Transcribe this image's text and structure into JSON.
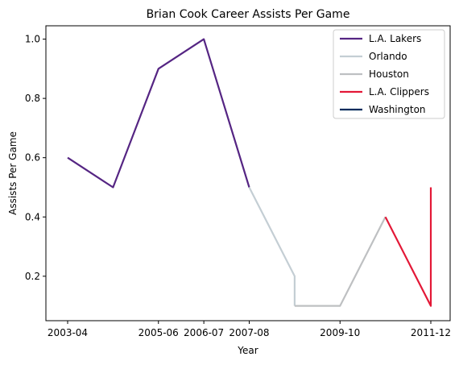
{
  "chart_data": {
    "type": "line",
    "title": "Brian Cook Career Assists Per Game",
    "xlabel": "Year",
    "ylabel": "Assists Per Game",
    "x_tick_labels": [
      "2003-04",
      "2005-06",
      "2006-07",
      "2007-08",
      "2009-10",
      "2011-12"
    ],
    "y_tick_labels": [
      "0.2",
      "0.4",
      "0.6",
      "0.8",
      "1.0"
    ],
    "y_ticks": [
      0.2,
      0.4,
      0.6,
      0.8,
      1.0
    ],
    "ylim": [
      0.05,
      1.045
    ],
    "grid": false,
    "legend_position": "top-right",
    "series": [
      {
        "name": "L.A. Lakers",
        "color": "#552583",
        "x": [
          "2003-04",
          "2004-05",
          "2005-06",
          "2006-07",
          "2007-08"
        ],
        "y": [
          0.6,
          0.5,
          0.9,
          1.0,
          0.5
        ]
      },
      {
        "name": "Orlando",
        "color": "#C4CED4",
        "x": [
          "2007-08",
          "2008-09",
          "2008-09"
        ],
        "y": [
          0.5,
          0.2,
          0.1
        ]
      },
      {
        "name": "Houston",
        "color": "#BEC0C2",
        "x": [
          "2008-09",
          "2009-10",
          "2010-11"
        ],
        "y": [
          0.1,
          0.1,
          0.4
        ]
      },
      {
        "name": "L.A. Clippers",
        "color": "#E31837",
        "x": [
          "2010-11",
          "2011-12",
          "2011-12"
        ],
        "y": [
          0.4,
          0.1,
          0.5
        ]
      },
      {
        "name": "Washington",
        "color": "#002B5C",
        "x": [],
        "y": []
      }
    ]
  }
}
